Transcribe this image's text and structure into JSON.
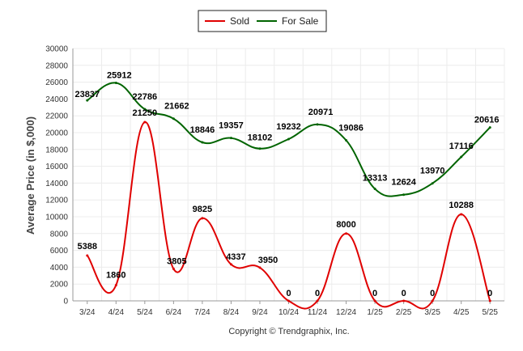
{
  "chart_data": {
    "type": "line",
    "categories": [
      "3/24",
      "4/24",
      "5/24",
      "6/24",
      "7/24",
      "8/24",
      "9/24",
      "10/24",
      "11/24",
      "12/24",
      "1/25",
      "2/25",
      "3/25",
      "4/25",
      "5/25"
    ],
    "series": [
      {
        "name": "Sold",
        "color": "#e00000",
        "values": [
          5388,
          1860,
          21250,
          3805,
          9825,
          4337,
          3950,
          0,
          0,
          8000,
          0,
          0,
          0,
          10288,
          0
        ]
      },
      {
        "name": "For Sale",
        "color": "#006400",
        "values": [
          23837,
          25912,
          22786,
          21662,
          18846,
          19357,
          18102,
          19232,
          20971,
          19086,
          13313,
          12624,
          13970,
          17116,
          20616
        ]
      }
    ],
    "ylabel": "Average Price (in $,000)",
    "ylim": [
      0,
      30000
    ],
    "yticks": [
      "0",
      "2000",
      "4000",
      "6000",
      "8000",
      "10000",
      "12000",
      "14000",
      "16000",
      "18000",
      "20000",
      "22000",
      "24000",
      "26000",
      "28000",
      "30000"
    ],
    "grid": true,
    "legend_position": "top-center"
  },
  "credit": "Copyright © Trendgraphix, Inc."
}
